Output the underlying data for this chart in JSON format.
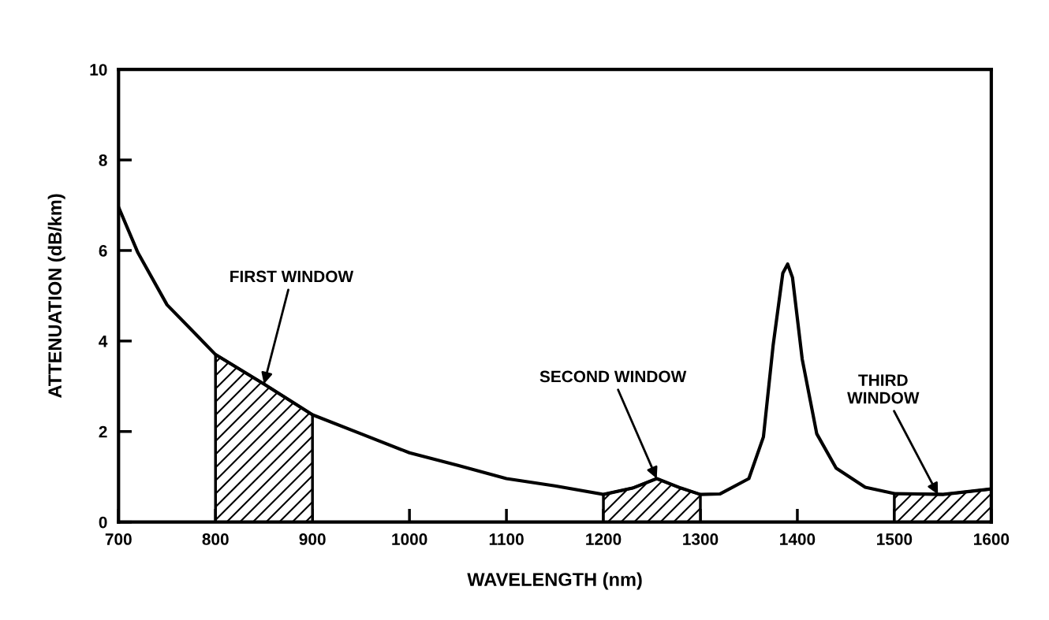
{
  "chart_data": {
    "type": "line",
    "xlabel": "WAVELENGTH (nm)",
    "ylabel": "ATTENUATION (dB/km)",
    "x": [
      700,
      720,
      750,
      800,
      850,
      900,
      950,
      1000,
      1050,
      1100,
      1150,
      1200,
      1230,
      1255,
      1280,
      1300,
      1320,
      1350,
      1365,
      1375,
      1385,
      1390,
      1395,
      1405,
      1420,
      1440,
      1470,
      1500,
      1550,
      1600
    ],
    "series": [
      {
        "color": "#000000",
        "values": [
          6.96,
          5.95,
          4.8,
          3.7,
          3.05,
          2.37,
          1.95,
          1.53,
          1.25,
          0.96,
          0.8,
          0.61,
          0.75,
          0.96,
          0.75,
          0.61,
          0.62,
          0.96,
          1.88,
          3.9,
          5.5,
          5.7,
          5.4,
          3.6,
          1.95,
          1.19,
          0.77,
          0.63,
          0.61,
          0.73
        ]
      },
      {
        "type": "area",
        "color": "#000000",
        "x": [
          800,
          850,
          900
        ],
        "values": [
          3.7,
          3.05,
          2.37
        ]
      },
      {
        "type": "area",
        "color": "#000000",
        "x": [
          1200,
          1230,
          1255,
          1280,
          1300
        ],
        "values": [
          0.61,
          0.75,
          0.96,
          0.75,
          0.61
        ]
      },
      {
        "type": "area",
        "color": "#000000",
        "x": [
          1500,
          1550,
          1600
        ],
        "values": [
          0.63,
          0.61,
          0.73
        ]
      }
    ],
    "xlim": [
      700,
      1600
    ],
    "ylim": [
      0,
      10
    ],
    "xticks": [
      700,
      800,
      900,
      1000,
      1100,
      1200,
      1300,
      1400,
      1500,
      1600
    ],
    "yticks": [
      0,
      2,
      4,
      6,
      8,
      10
    ],
    "annotations": [
      {
        "text": "FIRST WINDOW",
        "x": 850,
        "y": 3.05
      },
      {
        "text": "SECOND WINDOW",
        "x": 1255,
        "y": 0.96
      },
      {
        "text": "THIRD\nWINDOW",
        "x": 1545,
        "y": 0.61
      }
    ],
    "grid": false,
    "legend": false,
    "marker": "none",
    "line_style": "solid"
  }
}
